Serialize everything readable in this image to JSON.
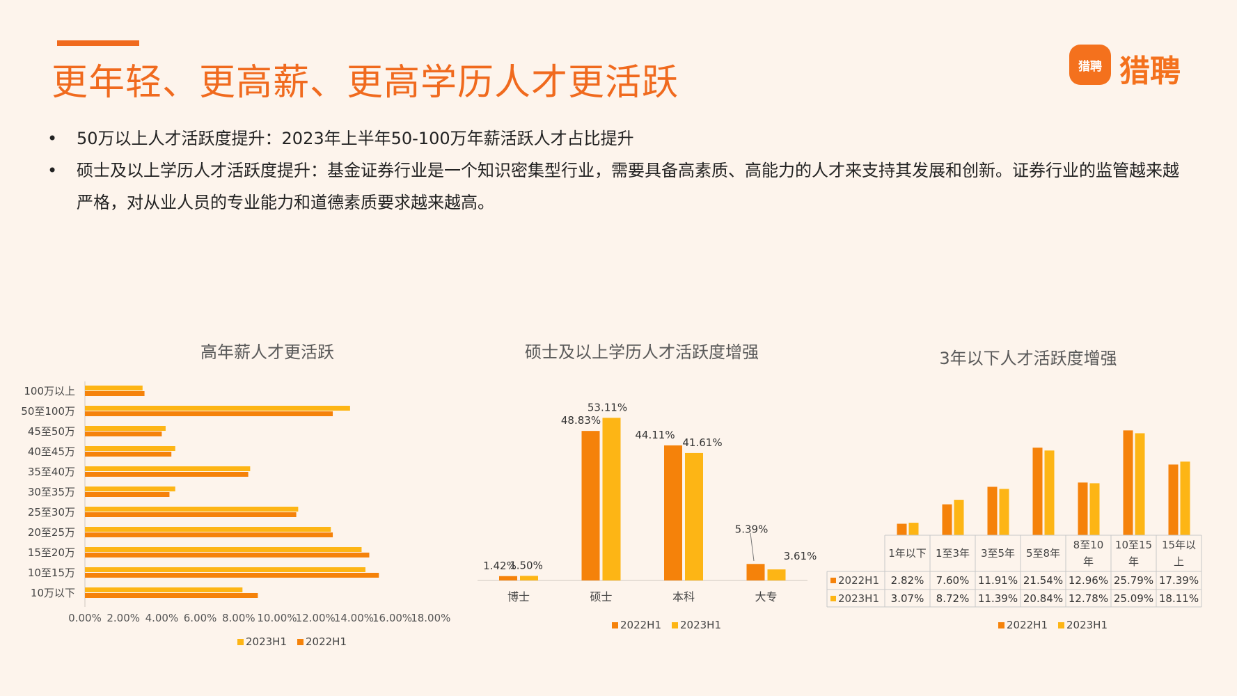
{
  "title": "更年轻、更高薪、更高学历人才更活跃",
  "logo": {
    "badge_text": "猎聘",
    "text": "猎聘"
  },
  "bullets": [
    "50万以上人才活跃度提升：2023年上半年50-100万年薪活跃人才占比提升",
    "硕士及以上学历人才活跃度提升：基金证券行业是一个知识密集型行业，需要具备高素质、高能力的人才来支持其发展和创新。证券行业的监管越来越严格，对从业人员的专业能力和道德素质要求越来越高。"
  ],
  "colors": {
    "s2022": "#f5820a",
    "s2023": "#fdb515",
    "accent": "#f06a1e"
  },
  "chart_data": [
    {
      "type": "bar",
      "orientation": "horizontal",
      "title": "高年薪人才更活跃",
      "categories": [
        "100万以上",
        "50至100万",
        "45至50万",
        "40至45万",
        "35至40万",
        "30至35万",
        "25至30万",
        "20至25万",
        "15至20万",
        "10至15万",
        "10万以下"
      ],
      "series": [
        {
          "name": "2023H1",
          "values": [
            3.0,
            13.8,
            4.2,
            4.7,
            8.6,
            4.7,
            11.1,
            12.8,
            14.4,
            14.6,
            8.2
          ]
        },
        {
          "name": "2022H1",
          "values": [
            3.1,
            12.9,
            4.0,
            4.5,
            8.5,
            4.4,
            11.0,
            12.9,
            14.8,
            15.3,
            9.0
          ]
        }
      ],
      "xticks": [
        "0.00%",
        "2.00%",
        "4.00%",
        "6.00%",
        "8.00%",
        "10.00%",
        "12.00%",
        "14.00%",
        "16.00%",
        "18.00%"
      ],
      "xlim": [
        0,
        18
      ],
      "legend": "bottom"
    },
    {
      "type": "bar",
      "title": "硕士及以上学历人才活跃度增强",
      "categories": [
        "博士",
        "硕士",
        "本科",
        "大专"
      ],
      "series": [
        {
          "name": "2022H1",
          "values": [
            1.42,
            48.83,
            44.11,
            5.39
          ],
          "labels": [
            "1.42%",
            "48.83%",
            "44.11%",
            "5.39%"
          ]
        },
        {
          "name": "2023H1",
          "values": [
            1.5,
            53.11,
            41.61,
            3.61
          ],
          "labels": [
            "1.50%",
            "53.11%",
            "41.61%",
            "3.61%"
          ]
        }
      ],
      "ylim": [
        0,
        55
      ],
      "legend": "bottom"
    },
    {
      "type": "bar",
      "title": "3年以下人才活跃度增强",
      "categories": [
        "1年以下",
        "1至3年",
        "3至5年",
        "5至8年",
        "8至10年",
        "10至15年",
        "15年以上"
      ],
      "series": [
        {
          "name": "2022H1",
          "values": [
            2.82,
            7.6,
            11.91,
            21.54,
            12.96,
            25.79,
            17.39
          ],
          "labels": [
            "2.82%",
            "7.60%",
            "11.91%",
            "21.54%",
            "12.96%",
            "25.79%",
            "17.39%"
          ]
        },
        {
          "name": "2023H1",
          "values": [
            3.07,
            8.72,
            11.39,
            20.84,
            12.78,
            25.09,
            18.11
          ],
          "labels": [
            "3.07%",
            "8.72%",
            "11.39%",
            "20.84%",
            "12.78%",
            "25.09%",
            "18.11%"
          ]
        }
      ],
      "ylim": [
        0,
        26
      ],
      "data_table": true,
      "legend": "bottom"
    }
  ]
}
